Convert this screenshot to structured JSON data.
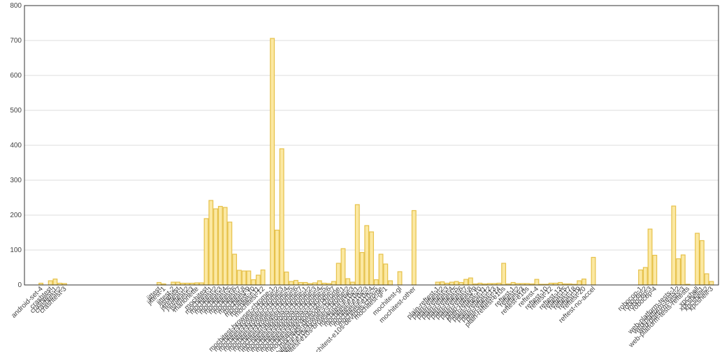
{
  "chart_data": {
    "type": "bar",
    "categories": [
      null,
      null,
      null,
      "android-set-4",
      null,
      "crashtest",
      "crashtest-1",
      "crashtest-2",
      "crashtest-3",
      null,
      null,
      null,
      null,
      null,
      null,
      null,
      null,
      null,
      null,
      null,
      null,
      null,
      null,
      null,
      null,
      null,
      null,
      null,
      "jittest",
      "jittest-1",
      null,
      "jittest-2",
      "jsreftest",
      "jsreftest-1",
      "jsreftest-2",
      "jsreftest-3",
      "marionette",
      null,
      "mochitest",
      "mochitest-1",
      "mochitest-2",
      "mochitest-3",
      "mochitest-4",
      "mochitest-5",
      "mochitest-6",
      "mochitest-7",
      "mochitest-8",
      "mochitest-9",
      "mochitest-10",
      "mochitest-11",
      "mochitest-12",
      null,
      "mochitest-browser-chrome-1",
      "mochitest-browser-chrome-2",
      "mochitest-browser-chrome-3",
      "mochitest-browser-chrome-4",
      "mochitest-browser-chrome-5",
      "mochitest-browser-chrome-6",
      "mochitest-browser-chrome-7",
      "mochitest-devtools-chrome-1",
      "mochitest-devtools-chrome-2",
      "mochitest-devtools-chrome-3",
      "mochitest-devtools-chrome-4",
      "mochitest-devtools-chrome-5",
      "mochitest-devtools-chrome-6",
      "mochitest-devtools-chrome-7",
      "mochitest-devtools-chrome",
      "mochitest-e10s-browser-chrome-1",
      "mochitest-e10s-browser-chrome-2",
      "mochitest-e10s-browser-chrome-3",
      "mochitest-e10s-1",
      "mochitest-e10s-2",
      "mochitest-e10s-3",
      "mochitest-e10s-4",
      "mochitest-e10s-5",
      "mochitest-e10s-devtools-chrome",
      "mochitest-gl-1",
      null,
      null,
      "mochitest-gl",
      null,
      null,
      "mochitest-other",
      null,
      null,
      null,
      null,
      "plain-reftest-1",
      "plain-reftest-2",
      "plain-reftest-3",
      "plain-reftest-4",
      "plain-reftest-5",
      "plain-reftest-6",
      "plain-reftest-7",
      "plain-reftest-8",
      "plain-reftest-9",
      "plain-reftest-10",
      "plain-reftest-11",
      "plain-reftest-12",
      "plain-reftest-13",
      "plain-reftest-14",
      "plain-reftest-e10s",
      null,
      "reftest-1",
      "reftest-2",
      "reftest-3",
      "reftest-e10s",
      null,
      "reftest-4",
      null,
      "reftest-10",
      "reftest-12",
      null,
      "reftest-13",
      "reftest-15",
      "reftest-17",
      "reftest-18",
      "reftest-19",
      "reftest-20",
      null,
      "reftest-no-accel",
      null,
      null,
      null,
      null,
      null,
      null,
      null,
      null,
      null,
      "robocop-1",
      "robocop-2",
      "robocop-3",
      "robocop-4",
      null,
      null,
      null,
      "web-platform-tests-1",
      "web-platform-tests-2",
      "web-platform-tests-3",
      "web-platform-tests-reftests",
      null,
      "xpcshell",
      "xpcshell-1",
      "xpcshell-2",
      "xpcshell-3",
      null
    ],
    "values": [
      0,
      0,
      0,
      5,
      0,
      12,
      17,
      5,
      4,
      0,
      0,
      0,
      0,
      0,
      0,
      0,
      0,
      0,
      0,
      0,
      0,
      0,
      0,
      0,
      0,
      0,
      0,
      0,
      7,
      3,
      0,
      8,
      8,
      5,
      5,
      5,
      6,
      6,
      190,
      242,
      218,
      225,
      222,
      180,
      88,
      42,
      40,
      40,
      15,
      28,
      43,
      0,
      706,
      157,
      390,
      37,
      10,
      13,
      7,
      7,
      4,
      6,
      12,
      5,
      4,
      10,
      62,
      104,
      18,
      8,
      230,
      93,
      170,
      152,
      15,
      88,
      60,
      12,
      0,
      38,
      0,
      0,
      213,
      0,
      0,
      0,
      0,
      8,
      9,
      5,
      8,
      10,
      7,
      16,
      20,
      3,
      5,
      3,
      4,
      4,
      5,
      62,
      3,
      7,
      4,
      4,
      4,
      3,
      16,
      2,
      2,
      5,
      5,
      7,
      3,
      3,
      2,
      12,
      17,
      0,
      79,
      0,
      0,
      0,
      0,
      0,
      0,
      0,
      0,
      0,
      43,
      50,
      160,
      85,
      0,
      0,
      0,
      226,
      75,
      86,
      2,
      0,
      148,
      127,
      32,
      10,
      0
    ],
    "color": "#fbe8a2",
    "ylim": [
      0,
      800
    ],
    "yticks": [
      0,
      100,
      200,
      300,
      400,
      500,
      600,
      700,
      800
    ],
    "grid": true
  }
}
